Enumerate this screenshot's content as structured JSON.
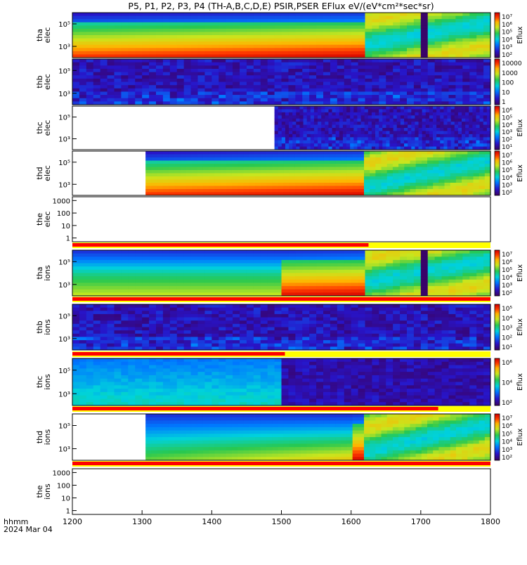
{
  "title": "P5, P1, P2, P3, P4 (TH-A,B,C,D,E) PSIR,PSER EFlux eV/(eV*cm²*sec*sr)",
  "x_axis": {
    "label_line1": "hhmm",
    "label_line2": "2024 Mar 04"
  },
  "colors": {
    "bar_red": "#ff0000",
    "bar_yellow": "#ffff00",
    "background": "#ffffff"
  },
  "chart_data": [
    {
      "type": "heatmap",
      "probe": "tha",
      "species": "elec",
      "ylabel": [
        "tha",
        "elec"
      ],
      "yscale": "log",
      "yticks": [
        {
          "value": 1000,
          "label": "10³"
        },
        {
          "value": 100000,
          "label": "10⁵"
        }
      ],
      "ylim": [
        100,
        1000000
      ],
      "colorbar_label": "Eflux",
      "colorbar_ticks": [
        "10⁷",
        "10⁶",
        "10⁵",
        "10⁴",
        "10³",
        "10²"
      ],
      "x_data_range": [
        1200,
        1800
      ],
      "profile": "main"
    },
    {
      "type": "heatmap",
      "probe": "thb",
      "species": "elec",
      "ylabel": [
        "thb",
        "elec"
      ],
      "yscale": "log",
      "yticks": [
        {
          "value": 1000,
          "label": "10³"
        },
        {
          "value": 100000,
          "label": "10⁵"
        }
      ],
      "ylim": [
        100,
        1000000
      ],
      "colorbar_label": "",
      "colorbar_ticks": [
        "10000",
        "1000",
        "100",
        "10",
        "1"
      ],
      "x_data_range": [
        1200,
        1800
      ],
      "profile": "noise"
    },
    {
      "type": "heatmap",
      "probe": "thc",
      "species": "elec",
      "ylabel": [
        "thc",
        "elec"
      ],
      "yscale": "log",
      "yticks": [
        {
          "value": 1000,
          "label": "10³"
        },
        {
          "value": 100000,
          "label": "10⁵"
        }
      ],
      "ylim": [
        100,
        1000000
      ],
      "colorbar_label": "Eflux",
      "colorbar_ticks": [
        "10⁶",
        "10⁵",
        "10⁴",
        "10³",
        "10²",
        "10¹"
      ],
      "x_data_range": [
        1490,
        1800
      ],
      "profile": "noise"
    },
    {
      "type": "heatmap",
      "probe": "thd",
      "species": "elec",
      "ylabel": [
        "thd",
        "elec"
      ],
      "yscale": "log",
      "yticks": [
        {
          "value": 1000,
          "label": "10³"
        },
        {
          "value": 100000,
          "label": "10⁵"
        }
      ],
      "ylim": [
        100,
        1000000
      ],
      "colorbar_label": "Eflux",
      "colorbar_ticks": [
        "10⁷",
        "10⁶",
        "10⁵",
        "10⁴",
        "10³",
        "10²"
      ],
      "x_data_range": [
        1305,
        1800
      ],
      "profile": "main"
    },
    {
      "type": "heatmap",
      "probe": "the",
      "species": "elec",
      "ylabel": [
        "the",
        "elec"
      ],
      "yscale": "log",
      "yticks": [
        {
          "value": 1,
          "label": "1"
        },
        {
          "value": 10,
          "label": "10"
        },
        {
          "value": 100,
          "label": "100"
        },
        {
          "value": 1000,
          "label": "1000"
        }
      ],
      "ylim": [
        0.5,
        2000
      ],
      "colorbar_label": "",
      "colorbar_ticks": [],
      "x_data_range": null,
      "profile": "empty"
    },
    {
      "type": "heatmap",
      "probe": "tha",
      "species": "ions",
      "ylabel": [
        "tha",
        "ions"
      ],
      "yscale": "log",
      "yticks": [
        {
          "value": 1000,
          "label": "10³"
        },
        {
          "value": 100000,
          "label": "10⁵"
        }
      ],
      "ylim": [
        100,
        1000000
      ],
      "colorbar_label": "Eflux",
      "colorbar_ticks": [
        "10⁷",
        "10⁶",
        "10⁵",
        "10⁴",
        "10³",
        "10²"
      ],
      "x_data_range": [
        1200,
        1800
      ],
      "profile": "ions"
    },
    {
      "type": "heatmap",
      "probe": "thb",
      "species": "ions",
      "ylabel": [
        "thb",
        "ions"
      ],
      "yscale": "log",
      "yticks": [
        {
          "value": 1000,
          "label": "10³"
        },
        {
          "value": 100000,
          "label": "10⁵"
        }
      ],
      "ylim": [
        100,
        1000000
      ],
      "colorbar_label": "Eflux",
      "colorbar_ticks": [
        "10⁵",
        "10⁴",
        "10³",
        "10²",
        "10¹"
      ],
      "x_data_range": [
        1200,
        1800
      ],
      "profile": "noise"
    },
    {
      "type": "heatmap",
      "probe": "thc",
      "species": "ions",
      "ylabel": [
        "thc",
        "ions"
      ],
      "yscale": "log",
      "yticks": [
        {
          "value": 1000,
          "label": "10³"
        },
        {
          "value": 100000,
          "label": "10⁵"
        }
      ],
      "ylim": [
        100,
        1000000
      ],
      "colorbar_label": "Eflux",
      "colorbar_ticks": [
        "10⁶",
        "10⁴",
        "10²"
      ],
      "x_data_range": [
        1200,
        1800
      ],
      "profile": "thc_ions"
    },
    {
      "type": "heatmap",
      "probe": "thd",
      "species": "ions",
      "ylabel": [
        "thd",
        "ions"
      ],
      "yscale": "log",
      "yticks": [
        {
          "value": 1000,
          "label": "10³"
        },
        {
          "value": 100000,
          "label": "10⁵"
        }
      ],
      "ylim": [
        100,
        1000000
      ],
      "colorbar_label": "Eflux",
      "colorbar_ticks": [
        "10⁷",
        "10⁶",
        "10⁵",
        "10⁴",
        "10³",
        "10²"
      ],
      "x_data_range": [
        1305,
        1800
      ],
      "profile": "thd_ions"
    },
    {
      "type": "heatmap",
      "probe": "the",
      "species": "ions",
      "ylabel": [
        "the",
        "ions"
      ],
      "yscale": "log",
      "yticks": [
        {
          "value": 1,
          "label": "1"
        },
        {
          "value": 10,
          "label": "10"
        },
        {
          "value": 100,
          "label": "100"
        },
        {
          "value": 1000,
          "label": "1000"
        }
      ],
      "ylim": [
        0.5,
        2000
      ],
      "colorbar_label": "",
      "colorbar_ticks": [],
      "x_data_range": null,
      "profile": "empty"
    }
  ],
  "bars": [
    {
      "after_panel": 4,
      "red_x_end": 1625
    },
    {
      "after_panel": 5,
      "red_x_end": 1800
    },
    {
      "after_panel": 6,
      "red_x_end": 1505
    },
    {
      "after_panel": 7,
      "red_x_end": 1725
    },
    {
      "after_panel": 8,
      "red_x_end": 1800
    }
  ],
  "xticks": [
    "1200",
    "1300",
    "1400",
    "1500",
    "1600",
    "1700",
    "1800"
  ],
  "xtick_values": [
    1200,
    1300,
    1400,
    1500,
    1600,
    1700,
    1800
  ],
  "xlim": [
    1200,
    1800
  ]
}
